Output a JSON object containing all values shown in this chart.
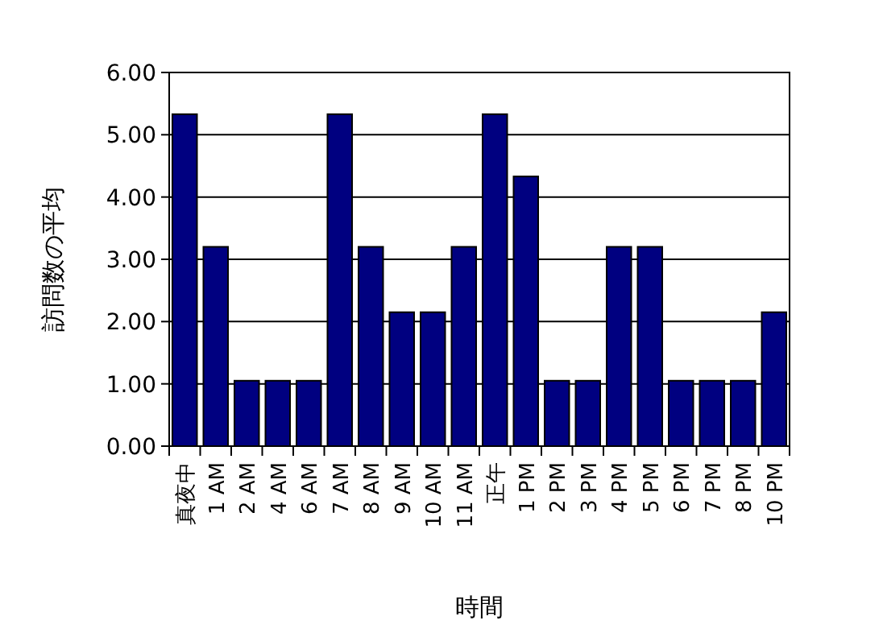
{
  "chart_data": {
    "type": "bar",
    "xlabel": "時間",
    "ylabel": "訪問数の平均",
    "categories": [
      "真夜中",
      "1 AM",
      "2 AM",
      "4 AM",
      "6 AM",
      "7 AM",
      "8 AM",
      "9 AM",
      "10 AM",
      "11 AM",
      "正午",
      "1 PM",
      "2 PM",
      "3 PM",
      "4 PM",
      "5 PM",
      "6 PM",
      "7 PM",
      "8 PM",
      "10 PM"
    ],
    "values": [
      5.33,
      3.2,
      1.05,
      1.05,
      1.05,
      5.33,
      3.2,
      2.15,
      2.15,
      3.2,
      5.33,
      4.33,
      1.05,
      1.05,
      3.2,
      3.2,
      1.05,
      1.05,
      1.05,
      2.15
    ],
    "color": "#000080",
    "ylim": [
      0,
      6
    ],
    "yticks": [
      {
        "value": 0,
        "label": "0.00"
      },
      {
        "value": 1,
        "label": "1.00"
      },
      {
        "value": 2,
        "label": "2.00"
      },
      {
        "value": 3,
        "label": "3.00"
      },
      {
        "value": 4,
        "label": "4.00"
      },
      {
        "value": 5,
        "label": "5.00"
      },
      {
        "value": 6,
        "label": "6.00"
      }
    ],
    "grid": "y"
  }
}
